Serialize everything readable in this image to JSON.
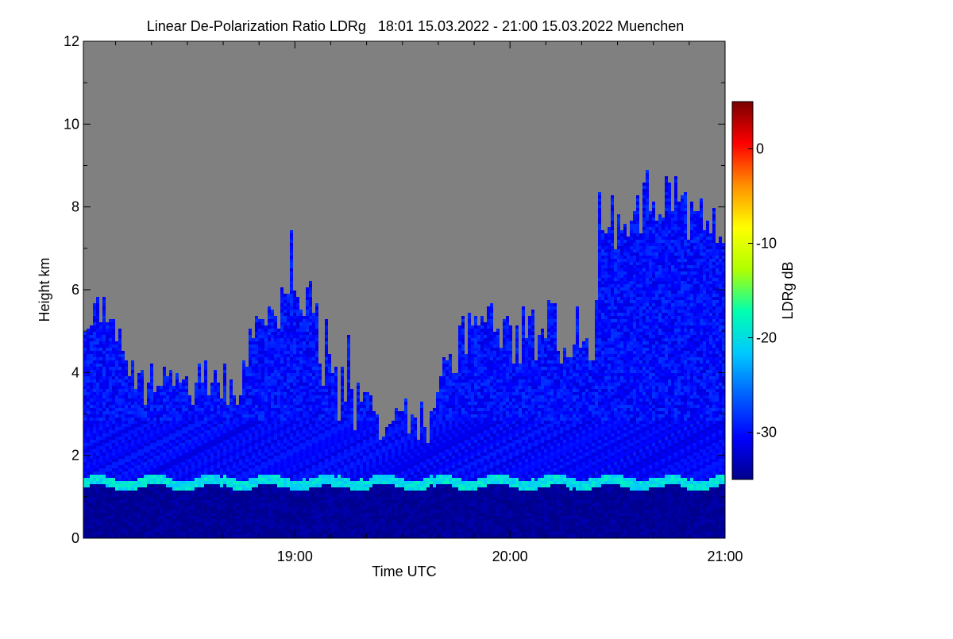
{
  "chart_data": {
    "type": "heatmap",
    "title": "Linear De-Polarization Ratio LDRg   18:01 15.03.2022 - 21:00 15.03.2022 Muenchen",
    "xlabel": "Time UTC",
    "ylabel": "Height km",
    "colorbar_label": "LDRg dB",
    "x_range": [
      "18:01",
      "21:00"
    ],
    "x_ticks": [
      "19:00",
      "20:00",
      "21:00"
    ],
    "x_tick_hours": [
      19,
      20,
      21
    ],
    "y_range": [
      0,
      12
    ],
    "y_ticks": [
      0,
      2,
      4,
      6,
      8,
      10,
      12
    ],
    "colorbar_range": [
      -35,
      5
    ],
    "colorbar_ticks": [
      0,
      -10,
      -20,
      -30
    ],
    "no_signal_color": "#808080",
    "colormap": [
      "#00008b",
      "#0000ff",
      "#0060ff",
      "#00c8ff",
      "#00ffb0",
      "#b0ff00",
      "#ffff00",
      "#ff9000",
      "#ff0000",
      "#7a0000"
    ],
    "features": {
      "boundary_layer_top_km": 1.35,
      "boundary_layer_ldr_db": -22,
      "background_aerosol_ldr_db": -32,
      "cloud_ldr_db": -30,
      "max_cloud_top_km": 9.0
    }
  }
}
